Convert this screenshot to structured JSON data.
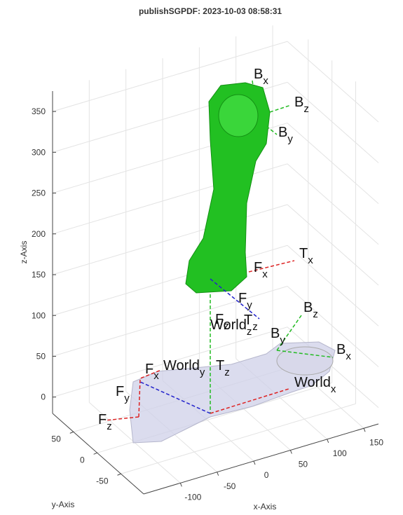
{
  "chart_data": {
    "type": "scene3d",
    "title": "publishSGPDF: 2023-10-03 08:58:31",
    "xlabel": "x-Axis",
    "ylabel": "y-Axis",
    "zlabel": "z-Axis",
    "xlim": [
      -150,
      170
    ],
    "ylim": [
      -98,
      94
    ],
    "zlim": [
      -20,
      375
    ],
    "xticks": [
      -100,
      -50,
      0,
      50,
      100,
      150
    ],
    "yticks": [
      -50,
      0,
      50
    ],
    "zticks": [
      0,
      50,
      100,
      150,
      200,
      250,
      300,
      350
    ],
    "grid": true,
    "annotations": [
      {
        "text": "B",
        "sub": "x"
      },
      {
        "text": "B",
        "sub": "z"
      },
      {
        "text": "B",
        "sub": "y"
      },
      {
        "text": "T",
        "sub": "x"
      },
      {
        "text": "F",
        "sub": "x"
      },
      {
        "text": "F",
        "sub": "y"
      },
      {
        "text": "F",
        "sub": "z"
      },
      {
        "text": "World",
        "sub": "z"
      },
      {
        "text": "T",
        "sub": "z"
      },
      {
        "text": "B",
        "sub": "z"
      },
      {
        "text": "B",
        "sub": "y"
      },
      {
        "text": "B",
        "sub": "x"
      },
      {
        "text": "F",
        "sub": "x"
      },
      {
        "text": "World",
        "sub": "y"
      },
      {
        "text": "T",
        "sub": "z"
      },
      {
        "text": "World",
        "sub": "x"
      },
      {
        "text": "F",
        "sub": "y"
      },
      {
        "text": "F",
        "sub": "z"
      }
    ]
  }
}
